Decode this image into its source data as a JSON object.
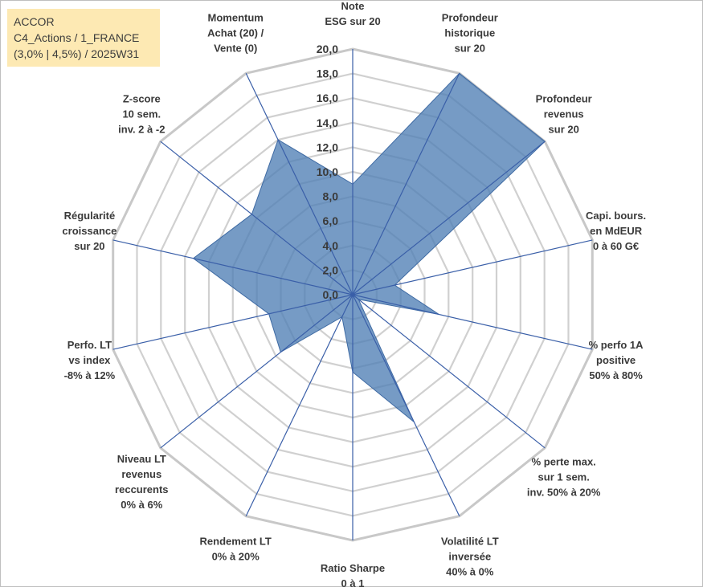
{
  "header": {
    "line1": "ACCOR",
    "line2": "C4_Actions / 1_FRANCE",
    "line3": "(3,0% | 4,5%) / 2025W31"
  },
  "chart_data": {
    "type": "radar",
    "rmax": 20,
    "rings": [
      0,
      2,
      4,
      6,
      8,
      10,
      12,
      14,
      16,
      18,
      20
    ],
    "tick_labels": [
      "0,0",
      "2,0",
      "4,0",
      "6,0",
      "8,0",
      "10,0",
      "12,0",
      "14,0",
      "16,0",
      "18,0",
      "20,0"
    ],
    "grid_color": "#bfbfbf",
    "axis_line_color": "#3a5fa8",
    "fill_color": "#4f7fb5",
    "axes": [
      {
        "lines": [
          "Note",
          "ESG sur 20"
        ]
      },
      {
        "lines": [
          "Profondeur",
          "historique",
          "sur 20"
        ]
      },
      {
        "lines": [
          "Profondeur",
          "revenus",
          "sur 20"
        ]
      },
      {
        "lines": [
          "Capi. bours.",
          "en MdEUR",
          "0 à 60 G€"
        ]
      },
      {
        "lines": [
          "% perfo 1A",
          "positive",
          "50% à 80%"
        ]
      },
      {
        "lines": [
          "% perte max.",
          "sur 1 sem.",
          "inv. 50% à 20%"
        ]
      },
      {
        "lines": [
          "Volatilité LT",
          "inversée",
          "40% à 0%"
        ]
      },
      {
        "lines": [
          "Ratio Sharpe",
          "0 à 1"
        ]
      },
      {
        "lines": [
          "Rendement LT",
          "0% à 20%"
        ]
      },
      {
        "lines": [
          "Niveau LT",
          "revenus",
          "reccurents",
          "0% à 6%"
        ]
      },
      {
        "lines": [
          "Perfo. LT",
          "vs index",
          "-8% à 12%"
        ]
      },
      {
        "lines": [
          "Régularité",
          "croissance",
          "sur 20"
        ]
      },
      {
        "lines": [
          "Z-score",
          "10 sem.",
          "inv. 2 à -2"
        ]
      },
      {
        "lines": [
          "Momentum",
          "Achat (20) /",
          "Vente (0)"
        ]
      }
    ],
    "values": [
      9.0,
      20.0,
      20.0,
      3.5,
      7.2,
      0.6,
      11.5,
      6.3,
      2.0,
      7.5,
      7.0,
      13.3,
      10.5,
      14.0
    ]
  }
}
